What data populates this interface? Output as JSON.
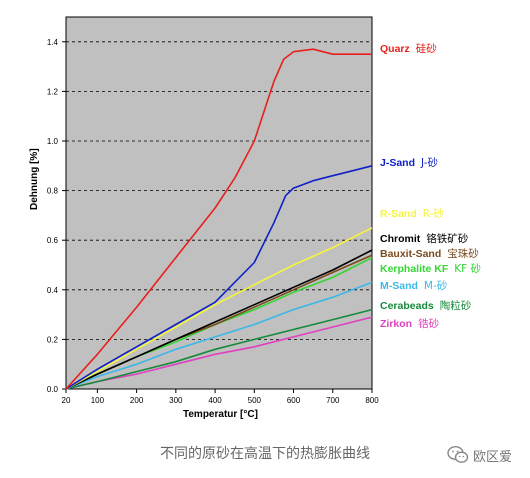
{
  "chart_data": {
    "type": "line",
    "title": "",
    "xlabel": "Temperatur [°C]",
    "ylabel": "Dehnung [%]",
    "xlim": [
      20,
      800
    ],
    "ylim": [
      0,
      1.5
    ],
    "x_ticks": [
      "20",
      "100",
      "200",
      "300",
      "400",
      "500",
      "600",
      "700",
      "800"
    ],
    "y_ticks": [
      "0.0",
      "0.2",
      "0.4",
      "0.6",
      "0.8",
      "1.0",
      "1.2",
      "1.4"
    ],
    "grid": "horizontal dashed",
    "background": "#c0c0c0",
    "legend_placement": "right",
    "series": [
      {
        "name": "Quarz",
        "name_zh": "硅砂",
        "color": "#e8201c",
        "x": [
          20,
          100,
          200,
          300,
          400,
          450,
          500,
          550,
          575,
          600,
          650,
          700,
          800
        ],
        "y": [
          0.0,
          0.14,
          0.33,
          0.53,
          0.73,
          0.85,
          1.0,
          1.24,
          1.33,
          1.36,
          1.37,
          1.35,
          1.35
        ]
      },
      {
        "name": "J-Sand",
        "name_zh": "J-砂",
        "color": "#1020c8",
        "x": [
          20,
          100,
          200,
          300,
          400,
          500,
          550,
          580,
          600,
          650,
          700,
          750,
          800
        ],
        "y": [
          0.0,
          0.08,
          0.17,
          0.26,
          0.35,
          0.51,
          0.67,
          0.78,
          0.81,
          0.84,
          0.86,
          0.88,
          0.9
        ]
      },
      {
        "name": "R-Sand",
        "name_zh": "R-砂",
        "color": "#f5f53a",
        "x": [
          20,
          100,
          200,
          300,
          400,
          500,
          600,
          700,
          800
        ],
        "y": [
          0.0,
          0.07,
          0.16,
          0.25,
          0.34,
          0.42,
          0.5,
          0.57,
          0.65
        ]
      },
      {
        "name": "Chromit",
        "name_zh": "铬铁矿砂",
        "color": "#000000",
        "x": [
          20,
          100,
          200,
          300,
          400,
          500,
          600,
          700,
          800
        ],
        "y": [
          0.0,
          0.06,
          0.13,
          0.2,
          0.27,
          0.34,
          0.41,
          0.48,
          0.56
        ]
      },
      {
        "name": "Bauxit-Sand",
        "name_zh": "宝珠砂",
        "color": "#7a4a1e",
        "x": [
          20,
          100,
          200,
          300,
          400,
          500,
          600,
          700,
          800
        ],
        "y": [
          0.0,
          0.06,
          0.13,
          0.2,
          0.26,
          0.33,
          0.4,
          0.47,
          0.54
        ]
      },
      {
        "name": "Kerphalite KF",
        "name_zh": "KF 砂",
        "color": "#33d633",
        "x": [
          20,
          100,
          200,
          300,
          400,
          500,
          600,
          700,
          800
        ],
        "y": [
          0.0,
          0.06,
          0.13,
          0.19,
          0.26,
          0.32,
          0.39,
          0.45,
          0.53
        ]
      },
      {
        "name": "M-Sand",
        "name_zh": "M-砂",
        "color": "#3ab8e8",
        "x": [
          20,
          100,
          200,
          300,
          400,
          500,
          600,
          700,
          800
        ],
        "y": [
          0.0,
          0.05,
          0.1,
          0.16,
          0.21,
          0.26,
          0.32,
          0.37,
          0.43
        ]
      },
      {
        "name": "Cerabeads",
        "name_zh": "陶粒砂",
        "color": "#168a3c",
        "x": [
          20,
          100,
          200,
          300,
          400,
          500,
          600,
          700,
          800
        ],
        "y": [
          0.0,
          0.03,
          0.07,
          0.11,
          0.16,
          0.2,
          0.24,
          0.28,
          0.32
        ]
      },
      {
        "name": "Zirkon",
        "name_zh": "锆砂",
        "color": "#e040c0",
        "x": [
          20,
          100,
          200,
          300,
          400,
          500,
          600,
          700,
          800
        ],
        "y": [
          0.0,
          0.03,
          0.06,
          0.1,
          0.14,
          0.17,
          0.21,
          0.25,
          0.29
        ]
      }
    ]
  },
  "caption": "不同的原砂在高温下的热膨胀曲线",
  "watermark": {
    "icon": "wechat-icon",
    "text": "欧区爱"
  }
}
